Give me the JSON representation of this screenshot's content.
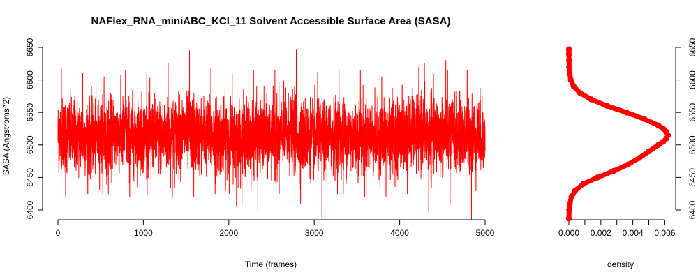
{
  "chart_data": [
    {
      "type": "line",
      "title": "NAFlex_RNA_miniABC_KCl_11 Solvent Accessible Surface Area (SASA)",
      "xlabel": "Time (frames)",
      "ylabel": "SASA (Angstroms^2)",
      "xlim": [
        0,
        5000
      ],
      "ylim": [
        6400,
        6650
      ],
      "xticks": [
        0,
        1000,
        2000,
        3000,
        4000,
        5000
      ],
      "yticks": [
        6400,
        6450,
        6500,
        6550,
        6600,
        6650
      ],
      "color": "#ff0000",
      "series": [
        {
          "x": [
            0,
            250,
            500,
            750,
            1000,
            1250,
            1500,
            1750,
            2000,
            2250,
            2500,
            2750,
            3000,
            3250,
            3500,
            3750,
            4000,
            4250,
            4500,
            4750,
            5000
          ],
          "mean": [
            6515,
            6514,
            6512,
            6516,
            6515,
            6513,
            6518,
            6514,
            6513,
            6512,
            6515,
            6516,
            6512,
            6514,
            6513,
            6511,
            6515,
            6520,
            6514,
            6516,
            6515
          ],
          "max": [
            6617,
            6610,
            6605,
            6615,
            6612,
            6625,
            6645,
            6618,
            6610,
            6615,
            6615,
            6647,
            6612,
            6615,
            6615,
            6605,
            6610,
            6625,
            6630,
            6615,
            6600
          ],
          "min": [
            6420,
            6425,
            6425,
            6420,
            6425,
            6420,
            6420,
            6425,
            6405,
            6398,
            6425,
            6410,
            6387,
            6425,
            6420,
            6420,
            6425,
            6395,
            6408,
            6386,
            6400
          ]
        }
      ]
    },
    {
      "type": "line",
      "xlabel": "density",
      "xlim": [
        0,
        0.0062
      ],
      "ylim": [
        6400,
        6650
      ],
      "xticks": [
        0,
        0.001,
        0.002,
        0.003,
        0.004,
        0.005,
        0.006
      ],
      "xtick_labels": [
        "0.000",
        "0.002",
        "0.004",
        "0.006"
      ],
      "yticks": [
        6400,
        6450,
        6500,
        6550,
        6600,
        6650
      ],
      "color": "#ff0000",
      "density_curve": {
        "y": [
          6387,
          6400,
          6410,
          6420,
          6430,
          6440,
          6450,
          6460,
          6470,
          6480,
          6490,
          6500,
          6505,
          6510,
          6515,
          6520,
          6525,
          6530,
          6540,
          6550,
          6560,
          6570,
          6580,
          6590,
          6600,
          6610,
          6620,
          6630,
          6640,
          6647
        ],
        "density": [
          0.0,
          2e-05,
          6e-05,
          0.00016,
          0.0004,
          0.0009,
          0.0018,
          0.0028,
          0.0037,
          0.0044,
          0.005,
          0.0056,
          0.0059,
          0.0061,
          0.0062,
          0.0061,
          0.0059,
          0.0056,
          0.0047,
          0.0036,
          0.0024,
          0.0014,
          0.0007,
          0.0003,
          0.00012,
          5e-05,
          2e-05,
          1e-05,
          0.0,
          0.0
        ]
      }
    }
  ]
}
